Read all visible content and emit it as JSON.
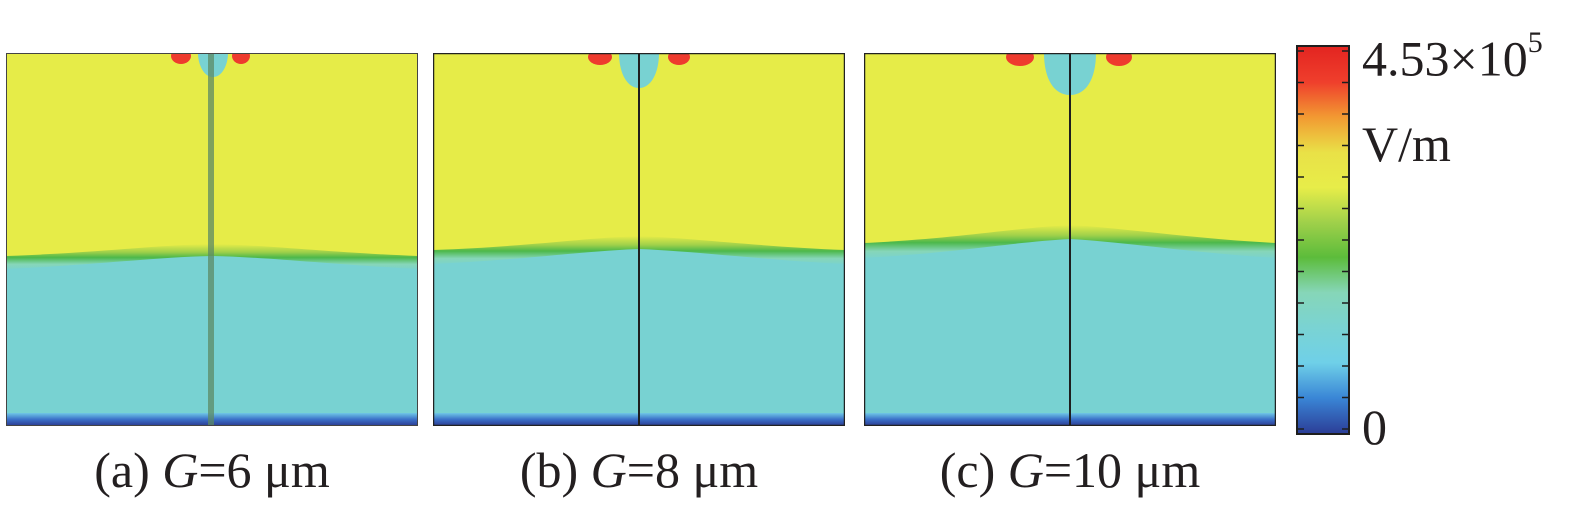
{
  "panels": [
    {
      "id": "a",
      "caption_prefix": "(a) ",
      "caption_var": "G",
      "caption_rest": "=6 μm"
    },
    {
      "id": "b",
      "caption_prefix": "(b) ",
      "caption_var": "G",
      "caption_rest": "=8 μm"
    },
    {
      "id": "c",
      "caption_prefix": "(c) ",
      "caption_var": "G",
      "caption_rest": "=10 μm"
    }
  ],
  "colorbar": {
    "max_mantissa": "4.53×10",
    "max_exponent": "5",
    "unit": "V/m",
    "min_label": "0",
    "colors": [
      "#2c3f98",
      "#3a86d6",
      "#6fd0e8",
      "#7ad3d3",
      "#86d6b8",
      "#5cbc3b",
      "#9fd04a",
      "#e7ed49",
      "#e9e147",
      "#f29a32",
      "#ef3f2c",
      "#e32521"
    ]
  },
  "palette": {
    "yellow": "#e6ec48",
    "cyan": "#78d2d2",
    "green": "#4cb84a",
    "red": "#ee3b2e",
    "blue": "#2d4ea8"
  }
}
